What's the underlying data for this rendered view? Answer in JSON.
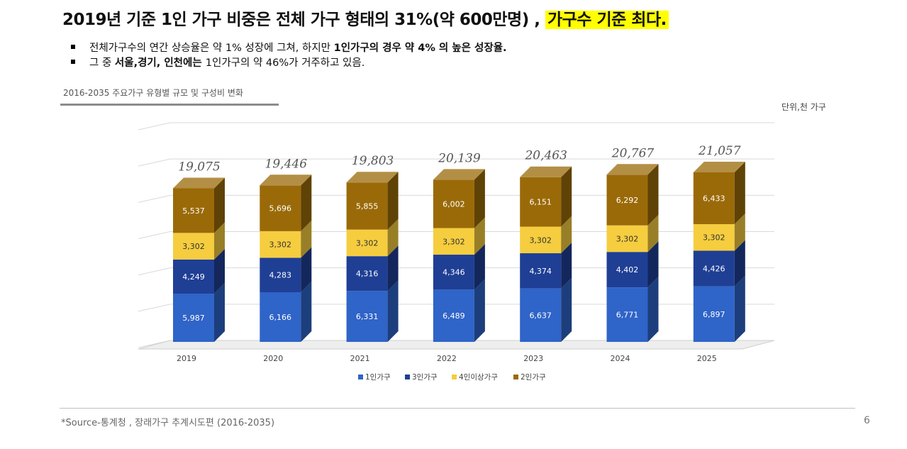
{
  "title": {
    "main": "2019년 기준 1인 가구 비중은 전체 가구 형태의 31%(약 600만명) ,",
    "highlight": "가구수 기준 최다."
  },
  "bullets": [
    {
      "parts": [
        {
          "text": "전체가구수의 연간 상승율은 약 1% 성장에 그쳐, 하지만 ",
          "bold": false
        },
        {
          "text": "1인가구의 경우 약 4% 의 높은 성장율.",
          "bold": true
        }
      ]
    },
    {
      "parts": [
        {
          "text": "그 중 ",
          "bold": false
        },
        {
          "text": "서울,경기,  인천에는 ",
          "bold": true
        },
        {
          "text": "1인가구의 약 46%가 거주하고 있음.",
          "bold": false
        }
      ]
    }
  ],
  "subtitle": "2016-2035 주요가구 유형별 규모 및 구성비 변화",
  "unit": "단위,천 가구",
  "source": "*Source-통계청 , 장래가구 추계시도편 (2016-2035)",
  "page_number": "6",
  "chart_data": {
    "type": "bar",
    "stacked": true,
    "categories": [
      "2019",
      "2020",
      "2021",
      "2022",
      "2023",
      "2024",
      "2025"
    ],
    "series": [
      {
        "name": "1인가구",
        "values": [
          5987,
          6166,
          6331,
          6489,
          6637,
          6771,
          6897
        ],
        "color": "#2f64c8",
        "labels": [
          "5,987",
          "6,166",
          "6,331",
          "6,489",
          "6,637",
          "6,771",
          "6,897"
        ]
      },
      {
        "name": "3인가구",
        "values": [
          4249,
          4283,
          4316,
          4346,
          4374,
          4402,
          4426
        ],
        "color": "#1f3f95",
        "labels": [
          "4,249",
          "4,283",
          "4,316",
          "4,346",
          "4,374",
          "4,402",
          "4,426"
        ]
      },
      {
        "name": "4인이상가구",
        "values": [
          3302,
          3302,
          3302,
          3302,
          3302,
          3302,
          3302
        ],
        "color": "#f5cd3f",
        "labels": [
          "3,302",
          "3,302",
          "3,302",
          "3,302",
          "3,302",
          "3,302",
          "3,302"
        ]
      },
      {
        "name": "2인가구",
        "values": [
          5537,
          5696,
          5855,
          6002,
          6151,
          6292,
          6433
        ],
        "color": "#9a6a08",
        "labels": [
          "5,537",
          "5,696",
          "5,855",
          "6,002",
          "6,151",
          "6,292",
          "6,433"
        ]
      }
    ],
    "totals": [
      "19,075",
      "19,446",
      "19,803",
      "20,139",
      "20,463",
      "20,767",
      "21,057"
    ],
    "legend_position": "bottom",
    "grid": true,
    "three_d": true
  }
}
